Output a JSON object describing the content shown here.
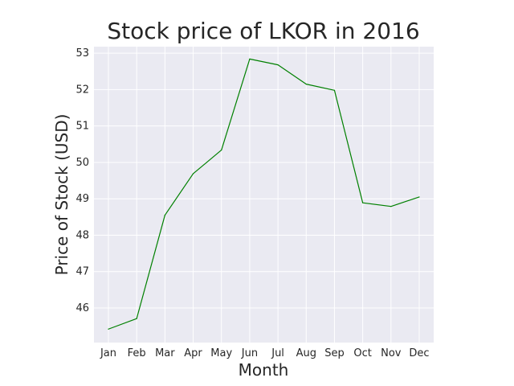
{
  "chart_data": {
    "type": "line",
    "title": "Stock price of LKOR in 2016",
    "xlabel": "Month",
    "ylabel": "Price of Stock (USD)",
    "categories": [
      "Jan",
      "Feb",
      "Mar",
      "Apr",
      "May",
      "Jun",
      "Jul",
      "Aug",
      "Sep",
      "Oct",
      "Nov",
      "Dec"
    ],
    "yticks": [
      46,
      47,
      48,
      49,
      50,
      51,
      52,
      53
    ],
    "ylim": [
      45.05,
      53.18
    ],
    "grid": true,
    "series": [
      {
        "color": "#008000",
        "values": [
          45.42,
          45.71,
          48.55,
          49.69,
          50.34,
          52.84,
          52.68,
          52.15,
          51.98,
          48.89,
          48.79,
          49.05
        ]
      }
    ]
  }
}
